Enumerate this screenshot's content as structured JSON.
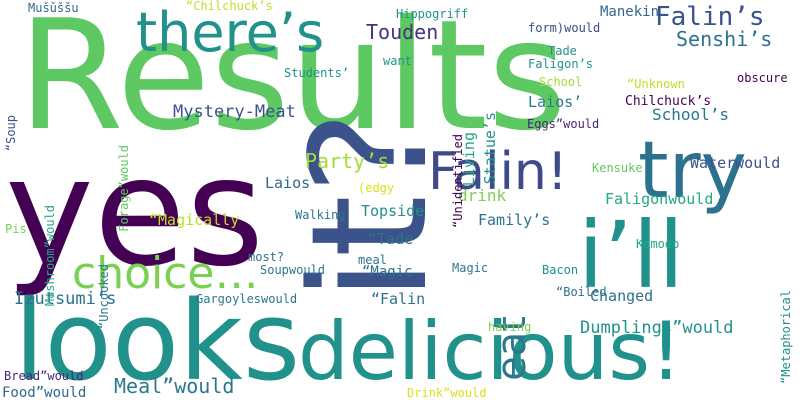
{
  "words": [
    {
      "text": "Results",
      "color": "#5ec962",
      "orientation": "horizontal"
    },
    {
      "text": "yes",
      "color": "#440154",
      "orientation": "horizontal"
    },
    {
      "text": "it?",
      "color": "#3b528b",
      "orientation": "vertical"
    },
    {
      "text": "looks",
      "color": "#21918c",
      "orientation": "horizontal"
    },
    {
      "text": "delicious!",
      "color": "#21918c",
      "orientation": "horizontal"
    },
    {
      "text": "i’ll",
      "color": "#21918c",
      "orientation": "horizontal"
    },
    {
      "text": "there’s",
      "color": "#21918c",
      "orientation": "horizontal"
    },
    {
      "text": "try",
      "color": "#2c728e",
      "orientation": "horizontal"
    },
    {
      "text": "choice…",
      "color": "#7ad151",
      "orientation": "horizontal"
    },
    {
      "text": "Falin!",
      "color": "#3e4a89",
      "orientation": "horizontal"
    },
    {
      "text": "eat",
      "color": "#2a788e",
      "orientation": "vertical"
    },
    {
      "text": "Falin’s",
      "color": "#3b528b",
      "orientation": "horizontal"
    },
    {
      "text": "Senshi’s",
      "color": "#2c728e",
      "orientation": "horizontal"
    },
    {
      "text": "Touden",
      "color": "#46327e",
      "orientation": "horizontal"
    },
    {
      "text": "Mystery-Meat",
      "color": "#3b528b",
      "orientation": "horizontal"
    },
    {
      "text": "Meal”would",
      "color": "#2a788e",
      "orientation": "horizontal"
    },
    {
      "text": "Izutsumi’s",
      "color": "#2c728e",
      "orientation": "horizontal"
    },
    {
      "text": "Party’s",
      "color": "#a5db36",
      "orientation": "horizontal"
    },
    {
      "text": "Waterwould",
      "color": "#3b528b",
      "orientation": "horizontal"
    },
    {
      "text": "Faligonwould",
      "color": "#22a884",
      "orientation": "horizontal"
    },
    {
      "text": "Dumplings”would",
      "color": "#21918c",
      "orientation": "horizontal"
    },
    {
      "text": "Changed",
      "color": "#2c728e",
      "orientation": "horizontal"
    },
    {
      "text": "School’s",
      "color": "#2a788e",
      "orientation": "horizontal"
    },
    {
      "text": "Statue’s",
      "color": "#21918c",
      "orientation": "vertical"
    },
    {
      "text": "Living",
      "color": "#22a884",
      "orientation": "vertical"
    },
    {
      "text": "Manekin",
      "color": "#31688e",
      "orientation": "horizontal"
    },
    {
      "text": "drink",
      "color": "#7ad151",
      "orientation": "horizontal"
    },
    {
      "text": "Family’s",
      "color": "#2c728e",
      "orientation": "horizontal"
    },
    {
      "text": "Topside",
      "color": "#21918c",
      "orientation": "horizontal"
    },
    {
      "text": "Laios",
      "color": "#31688e",
      "orientation": "horizontal"
    },
    {
      "text": "“Magically",
      "color": "#bddf26",
      "orientation": "horizontal"
    },
    {
      "text": "“Tade",
      "color": "#2c728e",
      "orientation": "horizontal"
    },
    {
      "text": "“Magic",
      "color": "#2c728e",
      "orientation": "horizontal"
    },
    {
      "text": "“Falin",
      "color": "#2c728e",
      "orientation": "horizontal"
    },
    {
      "text": "Laios’",
      "color": "#2a788e",
      "orientation": "horizontal"
    },
    {
      "text": "Chilchuck’s",
      "color": "#440154",
      "orientation": "horizontal"
    },
    {
      "text": "Eggs”would",
      "color": "#482878",
      "orientation": "horizontal"
    },
    {
      "text": "Hippogriff",
      "color": "#21918c",
      "orientation": "horizontal"
    },
    {
      "text": "form)would",
      "color": "#3e4a89",
      "orientation": "horizontal"
    },
    {
      "text": "Tade",
      "color": "#21918c",
      "orientation": "horizontal"
    },
    {
      "text": "Faligon’s",
      "color": "#21918c",
      "orientation": "horizontal"
    },
    {
      "text": "School",
      "color": "#a5db36",
      "orientation": "horizontal"
    },
    {
      "text": "“Unknown",
      "color": "#bddf26",
      "orientation": "horizontal"
    },
    {
      "text": "obscure",
      "color": "#440154",
      "orientation": "horizontal"
    },
    {
      "text": "Students’",
      "color": "#21918c",
      "orientation": "horizontal"
    },
    {
      "text": "want",
      "color": "#21918c",
      "orientation": "horizontal"
    },
    {
      "text": "“Unidentified",
      "color": "#440154",
      "orientation": "vertical"
    },
    {
      "text": "“Chilchuck’s",
      "color": "#bddf26",
      "orientation": "horizontal"
    },
    {
      "text": "Mušǔššu",
      "color": "#31688e",
      "orientation": "horizontal"
    },
    {
      "text": "“Soup",
      "color": "#3b528b",
      "orientation": "vertical"
    },
    {
      "text": "Mushroom”would",
      "color": "#22a884",
      "orientation": "vertical"
    },
    {
      "text": "Forage”would",
      "color": "#5ec962",
      "orientation": "vertical"
    },
    {
      "text": "“Uncooked",
      "color": "#2a788e",
      "orientation": "vertical"
    },
    {
      "text": "Pis",
      "color": "#7ad151",
      "orientation": "horizontal"
    },
    {
      "text": "Walking",
      "color": "#2a788e",
      "orientation": "horizontal"
    },
    {
      "text": "(edgy",
      "color": "#d8e219",
      "orientation": "horizontal"
    },
    {
      "text": "Kensuke",
      "color": "#5ec962",
      "orientation": "horizontal"
    },
    {
      "text": "Bacon",
      "color": "#21918c",
      "orientation": "horizontal"
    },
    {
      "text": "most?",
      "color": "#2c728e",
      "orientation": "horizontal"
    },
    {
      "text": "Soupwould",
      "color": "#2a788e",
      "orientation": "horizontal"
    },
    {
      "text": "meal",
      "color": "#2a788e",
      "orientation": "horizontal"
    },
    {
      "text": "Magic",
      "color": "#2a788e",
      "orientation": "horizontal"
    },
    {
      "text": "Komodo",
      "color": "#22a884",
      "orientation": "horizontal"
    },
    {
      "text": "“Metaphorical",
      "color": "#21918c",
      "orientation": "vertical"
    },
    {
      "text": "Gargoyleswould",
      "color": "#2a788e",
      "orientation": "horizontal"
    },
    {
      "text": "“Boiled",
      "color": "#2c728e",
      "orientation": "horizontal"
    },
    {
      "text": "having",
      "color": "#7ad151",
      "orientation": "horizontal"
    },
    {
      "text": "Bread”would",
      "color": "#482878",
      "orientation": "horizontal"
    },
    {
      "text": "Food”would",
      "color": "#31688e",
      "orientation": "horizontal"
    },
    {
      "text": "Drink”would",
      "color": "#d8e219",
      "orientation": "horizontal"
    }
  ]
}
